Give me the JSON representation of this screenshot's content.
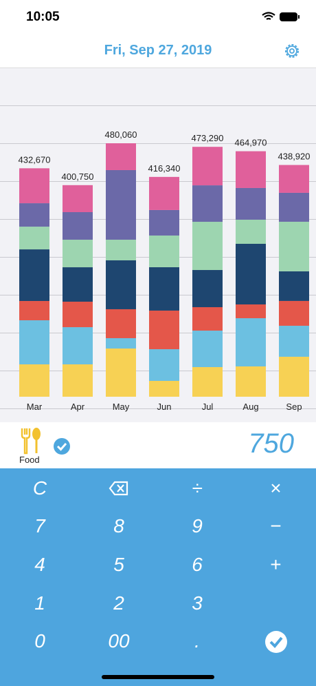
{
  "status_bar": {
    "time": "10:05"
  },
  "header": {
    "title": "Fri, Sep 27, 2019"
  },
  "chart_data": {
    "type": "stacked_bar",
    "categories": [
      "Mar",
      "Apr",
      "May",
      "Jun",
      "Jul",
      "Aug",
      "Sep"
    ],
    "total_labels": [
      "432,670",
      "400,750",
      "480,060",
      "416,340",
      "473,290",
      "464,970",
      "438,920"
    ],
    "series": [
      {
        "color": "#f7d154",
        "values": [
          61300,
          61300,
          91300,
          30000,
          56100,
          57400,
          75700
        ]
      },
      {
        "color": "#6cc0e1",
        "values": [
          83500,
          70400,
          19600,
          60000,
          69100,
          91300,
          58700
        ]
      },
      {
        "color": "#e4574a",
        "values": [
          36500,
          48300,
          54800,
          73100,
          44400,
          26100,
          47000
        ]
      },
      {
        "color": "#1e4670",
        "values": [
          97800,
          65200,
          92600,
          82200,
          70400,
          114800,
          56100
        ]
      },
      {
        "color": "#9dd5b0",
        "values": [
          43000,
          52200,
          39100,
          60000,
          91300,
          45700,
          93900
        ]
      },
      {
        "color": "#6b69a8",
        "values": [
          44400,
          52200,
          131800,
          48300,
          69100,
          60000,
          54800
        ]
      },
      {
        "color": "#e0609b",
        "values": [
          66170,
          51150,
          50860,
          62740,
          72890,
          69670,
          52720
        ]
      }
    ]
  },
  "entry": {
    "category": "Food",
    "amount": "750"
  },
  "keypad": {
    "clear": "C",
    "divide": "÷",
    "multiply": "×",
    "minus": "−",
    "plus": "+",
    "seven": "7",
    "eight": "8",
    "nine": "9",
    "four": "4",
    "five": "5",
    "six": "6",
    "one": "1",
    "two": "2",
    "three": "3",
    "zero": "0",
    "double_zero": "00",
    "decimal": "."
  }
}
